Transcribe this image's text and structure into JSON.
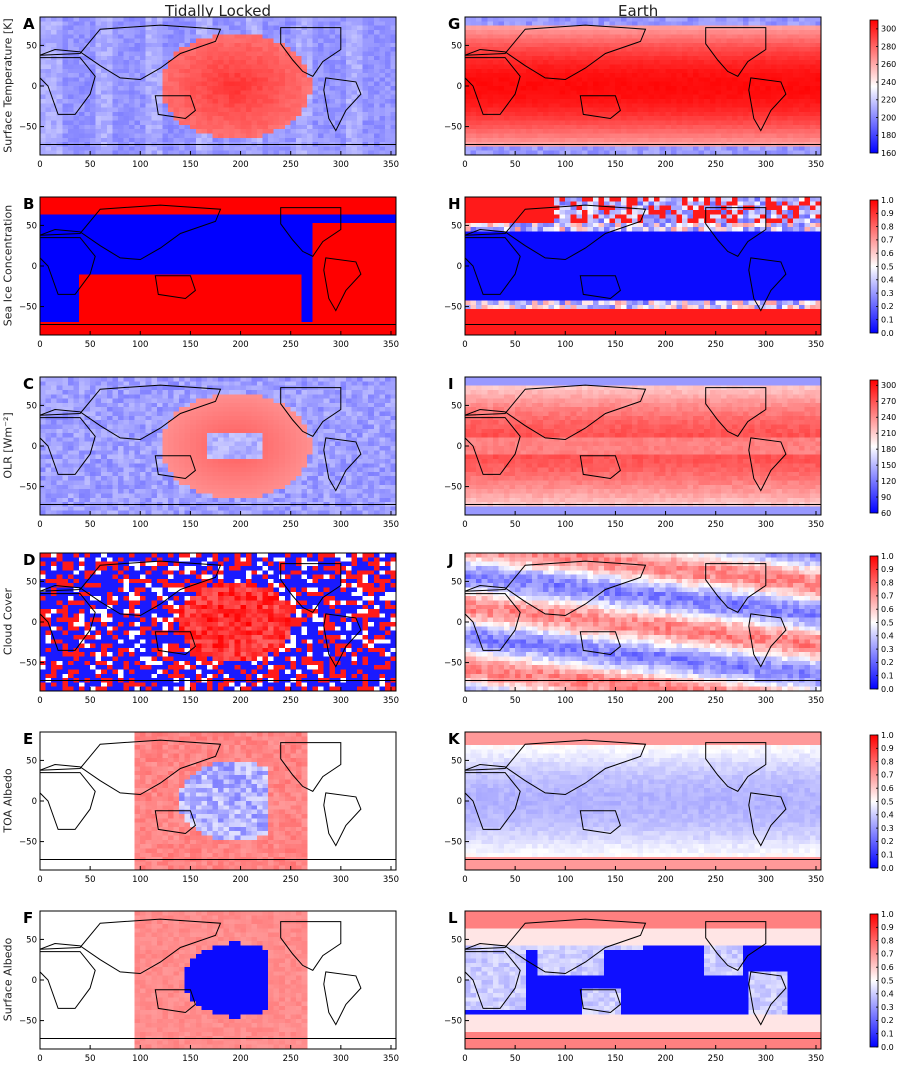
{
  "columns": [
    {
      "title": "Tidally Locked"
    },
    {
      "title": "Earth"
    }
  ],
  "rows": [
    {
      "ylabel": "Surface Temperature [K]",
      "colorbar": {
        "min": 160,
        "max": 310,
        "ticks": [
          "300",
          "280",
          "260",
          "240",
          "220",
          "200",
          "180",
          "160"
        ],
        "tick_values": [
          300,
          280,
          260,
          240,
          220,
          200,
          180,
          160
        ]
      }
    },
    {
      "ylabel": "Sea Ice Concentration",
      "colorbar": {
        "min": 0,
        "max": 1,
        "ticks": [
          "1.0",
          "0.9",
          "0.8",
          "0.7",
          "0.6",
          "0.5",
          "0.4",
          "0.3",
          "0.2",
          "0.1",
          "0.0"
        ],
        "tick_values": [
          1,
          0.9,
          0.8,
          0.7,
          0.6,
          0.5,
          0.4,
          0.3,
          0.2,
          0.1,
          0
        ]
      }
    },
    {
      "ylabel": "OLR [Wm⁻²]",
      "colorbar": {
        "min": 60,
        "max": 310,
        "ticks": [
          "300",
          "270",
          "240",
          "210",
          "180",
          "150",
          "120",
          "90",
          "60"
        ],
        "tick_values": [
          300,
          270,
          240,
          210,
          180,
          150,
          120,
          90,
          60
        ]
      }
    },
    {
      "ylabel": "Cloud Cover",
      "colorbar": {
        "min": 0,
        "max": 1,
        "ticks": [
          "1.0",
          "0.9",
          "0.8",
          "0.7",
          "0.6",
          "0.5",
          "0.4",
          "0.3",
          "0.2",
          "0.1",
          "0.0"
        ],
        "tick_values": [
          1,
          0.9,
          0.8,
          0.7,
          0.6,
          0.5,
          0.4,
          0.3,
          0.2,
          0.1,
          0
        ]
      }
    },
    {
      "ylabel": "TOA Albedo",
      "colorbar": {
        "min": 0,
        "max": 1,
        "ticks": [
          "1.0",
          "0.9",
          "0.8",
          "0.7",
          "0.6",
          "0.5",
          "0.4",
          "0.3",
          "0.2",
          "0.1",
          "0.0"
        ],
        "tick_values": [
          1,
          0.9,
          0.8,
          0.7,
          0.6,
          0.5,
          0.4,
          0.3,
          0.2,
          0.1,
          0
        ]
      }
    },
    {
      "ylabel": "Surface Albedo",
      "colorbar": {
        "min": 0,
        "max": 1,
        "ticks": [
          "1.0",
          "0.9",
          "0.8",
          "0.7",
          "0.6",
          "0.5",
          "0.4",
          "0.3",
          "0.2",
          "0.1",
          "0.0"
        ],
        "tick_values": [
          1,
          0.9,
          0.8,
          0.7,
          0.6,
          0.5,
          0.4,
          0.3,
          0.2,
          0.1,
          0
        ]
      }
    }
  ],
  "panels": [
    {
      "letter": "A",
      "field": "Surface Temperature, Tidally Locked"
    },
    {
      "letter": "G",
      "field": "Surface Temperature, Earth"
    },
    {
      "letter": "B",
      "field": "Sea Ice Concentration, Tidally Locked"
    },
    {
      "letter": "H",
      "field": "Sea Ice Concentration, Earth"
    },
    {
      "letter": "C",
      "field": "OLR, Tidally Locked"
    },
    {
      "letter": "I",
      "field": "OLR, Earth"
    },
    {
      "letter": "D",
      "field": "Cloud Cover, Tidally Locked"
    },
    {
      "letter": "J",
      "field": "Cloud Cover, Earth"
    },
    {
      "letter": "E",
      "field": "TOA Albedo, Tidally Locked"
    },
    {
      "letter": "K",
      "field": "TOA Albedo, Earth"
    },
    {
      "letter": "F",
      "field": "Surface Albedo, Tidally Locked"
    },
    {
      "letter": "L",
      "field": "Surface Albedo, Earth"
    }
  ],
  "chart_data": {
    "type": "heatmap",
    "colormap": {
      "low": "#0000ff",
      "mid": "#ffffff",
      "high": "#ff0000"
    },
    "coastline_color": "#000000",
    "xlim": [
      0,
      355
    ],
    "ylim": [
      -85,
      85
    ],
    "x_ticks": [
      0,
      50,
      100,
      150,
      200,
      250,
      300,
      350
    ],
    "x_tick_labels": [
      "0",
      "50",
      "100",
      "150",
      "200",
      "250",
      "300",
      "350"
    ],
    "y_ticks": [
      50,
      0,
      -50
    ],
    "y_tick_labels": [
      "50",
      "0",
      "−50"
    ]
  }
}
